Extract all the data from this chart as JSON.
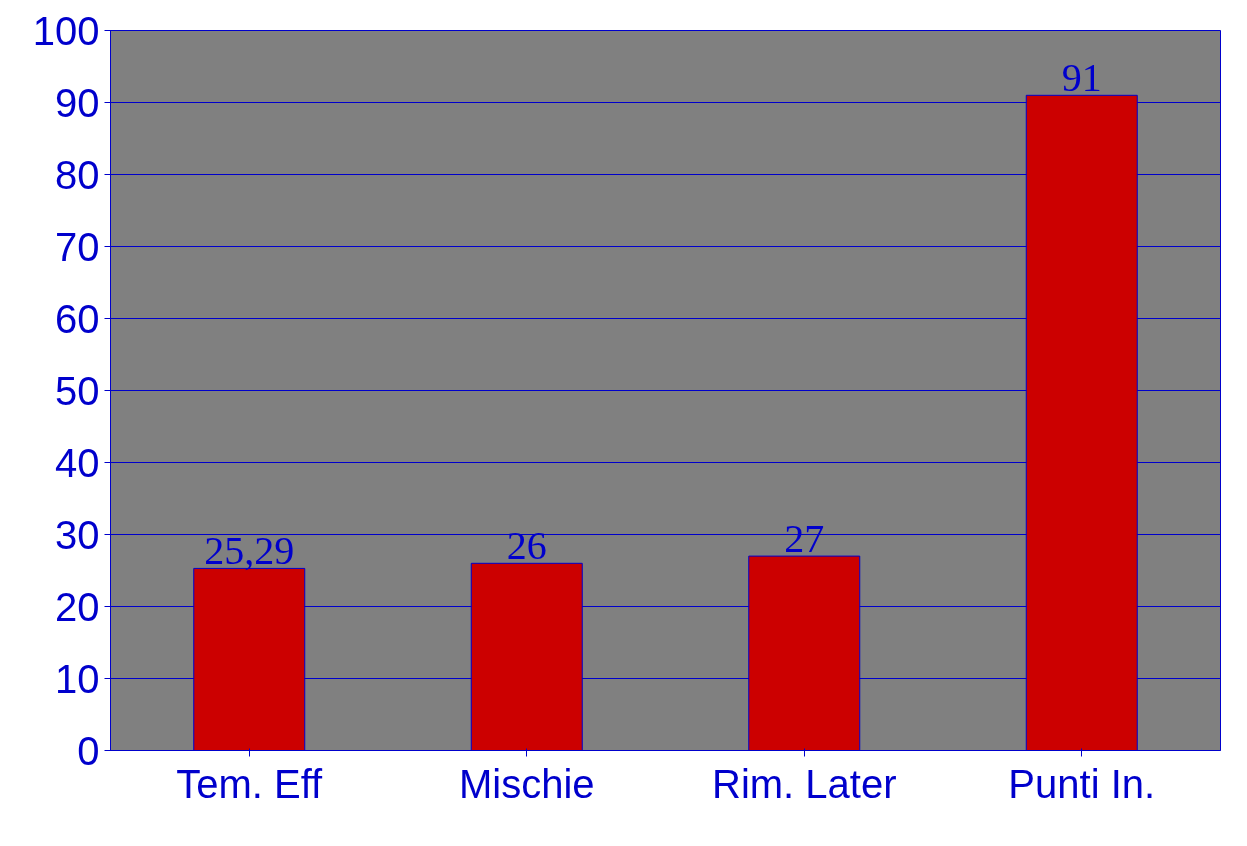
{
  "chart_data": {
    "type": "bar",
    "categories": [
      "Tem. Eff",
      "Mischie",
      "Rim. Later",
      "Punti In."
    ],
    "values": [
      25.29,
      26,
      27,
      91
    ],
    "value_labels": [
      "25,29",
      "26",
      "27",
      "91"
    ],
    "color": "#cc0000",
    "ylim": [
      0,
      100
    ],
    "yticks": [
      0,
      10,
      20,
      30,
      40,
      50,
      60,
      70,
      80,
      90,
      100
    ],
    "grid": "y"
  }
}
